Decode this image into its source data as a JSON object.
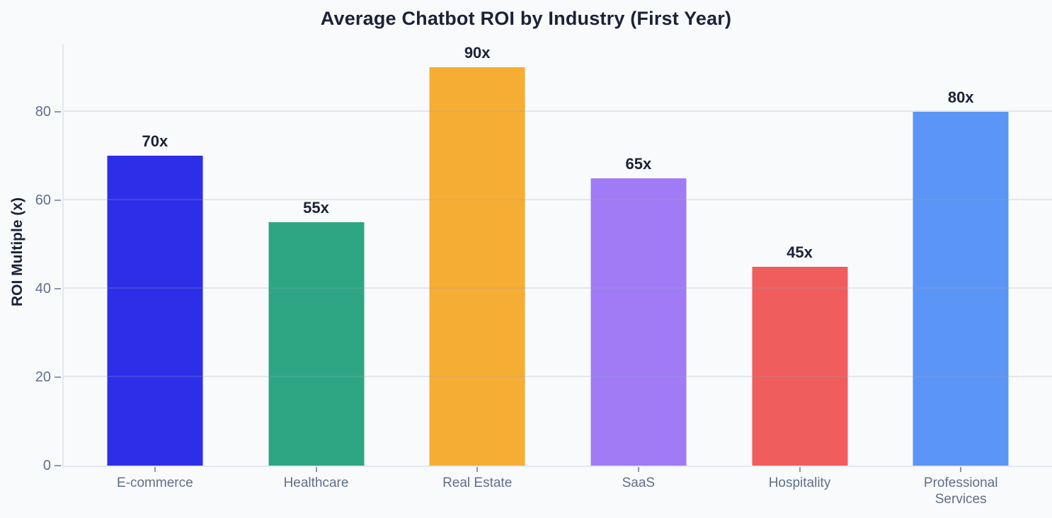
{
  "chart_data": {
    "type": "bar",
    "title": "Average Chatbot ROI by Industry (First Year)",
    "ylabel": "ROI Multiple (x)",
    "xlabel": "",
    "categories": [
      "E-commerce",
      "Healthcare",
      "Real Estate",
      "SaaS",
      "Hospitality",
      "Professional Services"
    ],
    "values": [
      70,
      55,
      90,
      65,
      45,
      80
    ],
    "value_labels": [
      "70x",
      "55x",
      "90x",
      "65x",
      "45x",
      "80x"
    ],
    "bar_colors": [
      "#2e2ee9",
      "#2ea683",
      "#f6ad33",
      "#a17bf5",
      "#f05d5d",
      "#5b95f5"
    ],
    "yticks": [
      0,
      20,
      40,
      60,
      80
    ],
    "ytick_labels": [
      "0",
      "20",
      "40",
      "60",
      "80"
    ],
    "ylim": [
      0,
      95.3
    ],
    "grid": "horizontal",
    "legend": "none"
  },
  "theme": {
    "background": "#f8fafc",
    "title_color": "#1c2236",
    "value_label_color": "#1c2236",
    "tick_label_color": "#626f88",
    "tick_mark_color": "#8f97a8",
    "grid_color": "rgba(148,163,184,0.22)",
    "axis_line_color": "#e4e8ef"
  }
}
